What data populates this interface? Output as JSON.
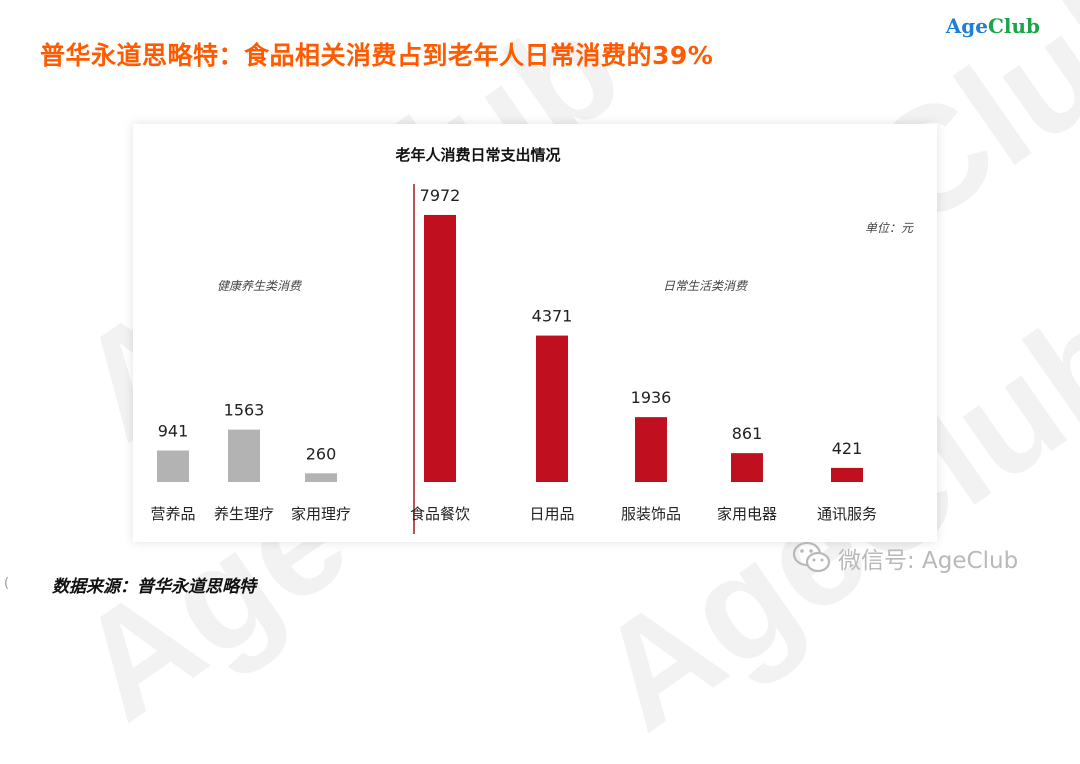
{
  "slide": {
    "title": "普华永道思略特：食品相关消费占到老年人日常消费的39%",
    "logo_age": "Age",
    "logo_club": "Club",
    "watermark_text": "AgeClub",
    "source": "数据来源：普华永道思略特",
    "corner_mark": "(",
    "wechat_label": "微信号: AgeClub"
  },
  "colors": {
    "title": "#ff5a00",
    "health_bar": "#b3b3b3",
    "daily_bar": "#c00f1e",
    "divider": "#a11a22"
  },
  "chart_data": {
    "type": "bar",
    "title": "老年人消费日常支出情况",
    "unit_label": "单位：元",
    "grid": false,
    "groups": [
      {
        "name": "健康养生类消费",
        "color": "#b3b3b3",
        "categories": [
          "营养品",
          "养生理疗",
          "家用理疗"
        ],
        "values": [
          941,
          1563,
          260
        ]
      },
      {
        "name": "日常生活类消费",
        "color": "#c00f1e",
        "categories": [
          "食品餐饮",
          "日用品",
          "服装饰品",
          "家用电器",
          "通讯服务"
        ],
        "values": [
          7972,
          4371,
          1936,
          861,
          421
        ]
      }
    ],
    "categories": [
      "营养品",
      "养生理疗",
      "家用理疗",
      "食品餐饮",
      "日用品",
      "服装饰品",
      "家用电器",
      "通讯服务"
    ],
    "values": [
      941,
      1563,
      260,
      7972,
      4371,
      1936,
      861,
      421
    ],
    "ylim": [
      0,
      8000
    ]
  }
}
